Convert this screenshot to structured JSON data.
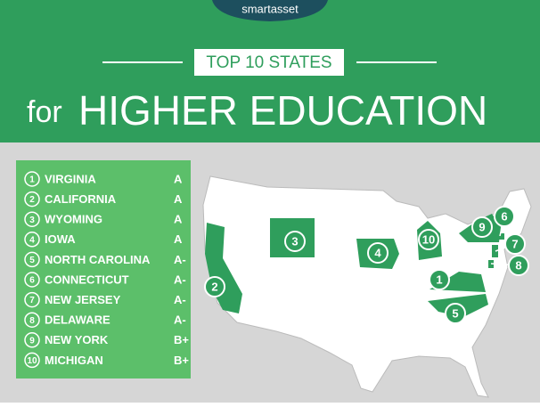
{
  "header": {
    "logo": "smartasset",
    "title_tag": "TOP 10 STATES",
    "title_prefix": "for",
    "title": "HIGHER EDUCATION"
  },
  "rankings": [
    {
      "rank": "1",
      "state": "VIRGINIA",
      "grade": "A"
    },
    {
      "rank": "2",
      "state": "CALIFORNIA",
      "grade": "A"
    },
    {
      "rank": "3",
      "state": "WYOMING",
      "grade": "A"
    },
    {
      "rank": "4",
      "state": "IOWA",
      "grade": "A"
    },
    {
      "rank": "5",
      "state": "NORTH CAROLINA",
      "grade": "A-"
    },
    {
      "rank": "6",
      "state": "CONNECTICUT",
      "grade": "A-"
    },
    {
      "rank": "7",
      "state": "NEW JERSEY",
      "grade": "A-"
    },
    {
      "rank": "8",
      "state": "DELAWARE",
      "grade": "A-"
    },
    {
      "rank": "9",
      "state": "NEW YORK",
      "grade": "B+"
    },
    {
      "rank": "10",
      "state": "MICHIGAN",
      "grade": "B+"
    }
  ]
}
